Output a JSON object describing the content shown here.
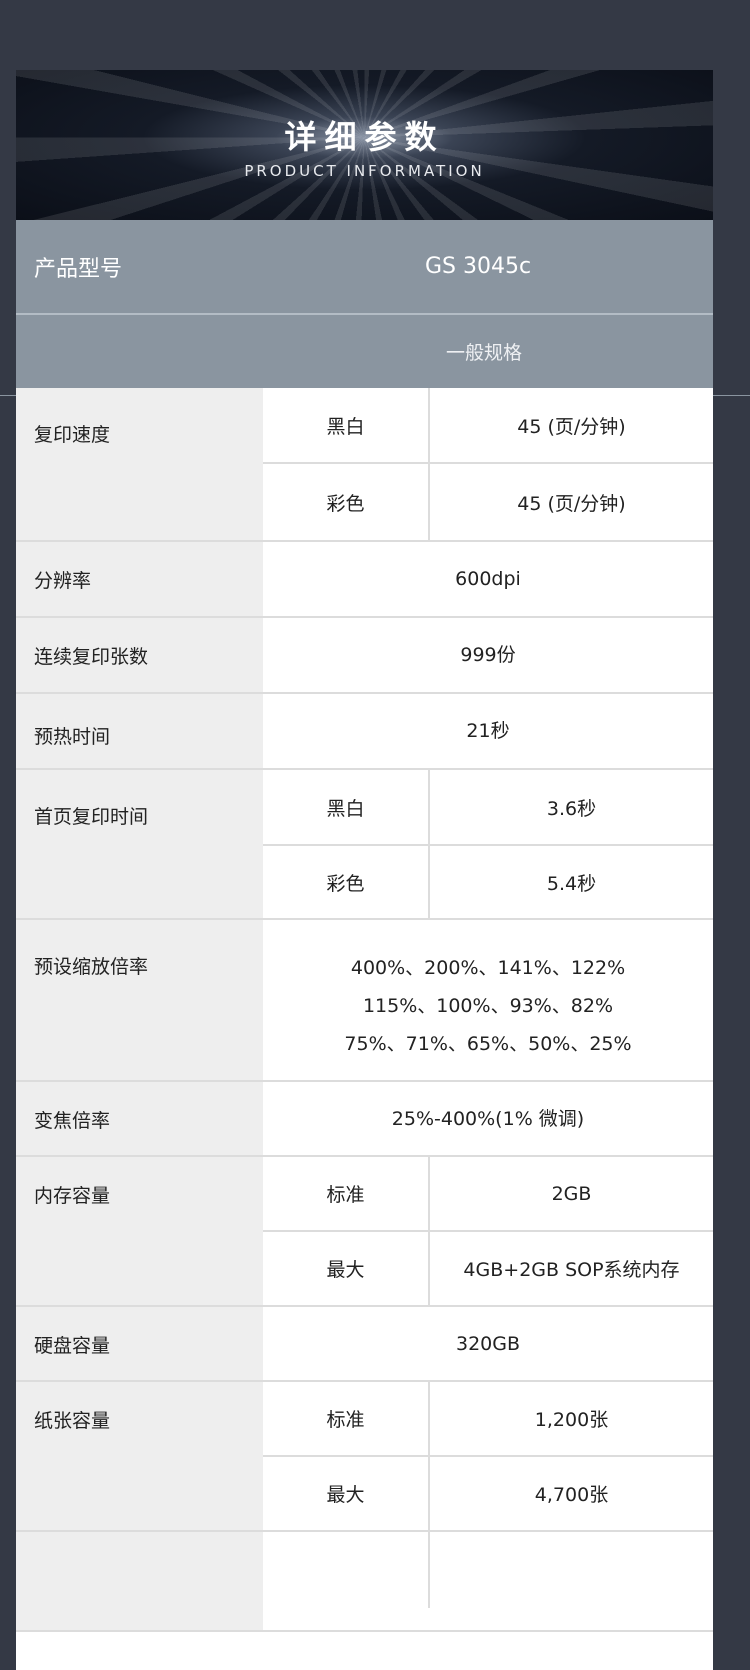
{
  "banner": {
    "title": "详细参数",
    "subtitle": "PRODUCT INFORMATION"
  },
  "model": {
    "label": "产品型号",
    "value": "GS 3045c"
  },
  "section": "一般规格",
  "specs": {
    "copy_speed": {
      "label": "复印速度",
      "bw_key": "黑白",
      "bw": "45 (页/分钟)",
      "color_key": "彩色",
      "color": "45 (页/分钟)"
    },
    "resolution": {
      "label": "分辨率",
      "value": "600dpi"
    },
    "continuous": {
      "label": "连续复印张数",
      "value": "999份"
    },
    "warmup": {
      "label": "预热时间",
      "value": "21秒"
    },
    "first_copy": {
      "label": "首页复印时间",
      "bw_key": "黑白",
      "bw": "3.6秒",
      "color_key": "彩色",
      "color": "5.4秒"
    },
    "zoom_preset": {
      "label": "预设缩放倍率",
      "lines": [
        "400%、200%、141%、122%",
        "115%、100%、93%、82%",
        "75%、71%、65%、50%、25%"
      ]
    },
    "zoom": {
      "label": "变焦倍率",
      "value": "25%-400%(1% 微调)"
    },
    "memory": {
      "label": "内存容量",
      "std_key": "标准",
      "std": "2GB",
      "max_key": "最大",
      "max": "4GB+2GB SOP系统内存"
    },
    "hdd": {
      "label": "硬盘容量",
      "value": "320GB"
    },
    "paper": {
      "label": "纸张容量",
      "std_key": "标准",
      "std": "1,200张",
      "max_key": "最大",
      "max": "4,700张"
    }
  }
}
